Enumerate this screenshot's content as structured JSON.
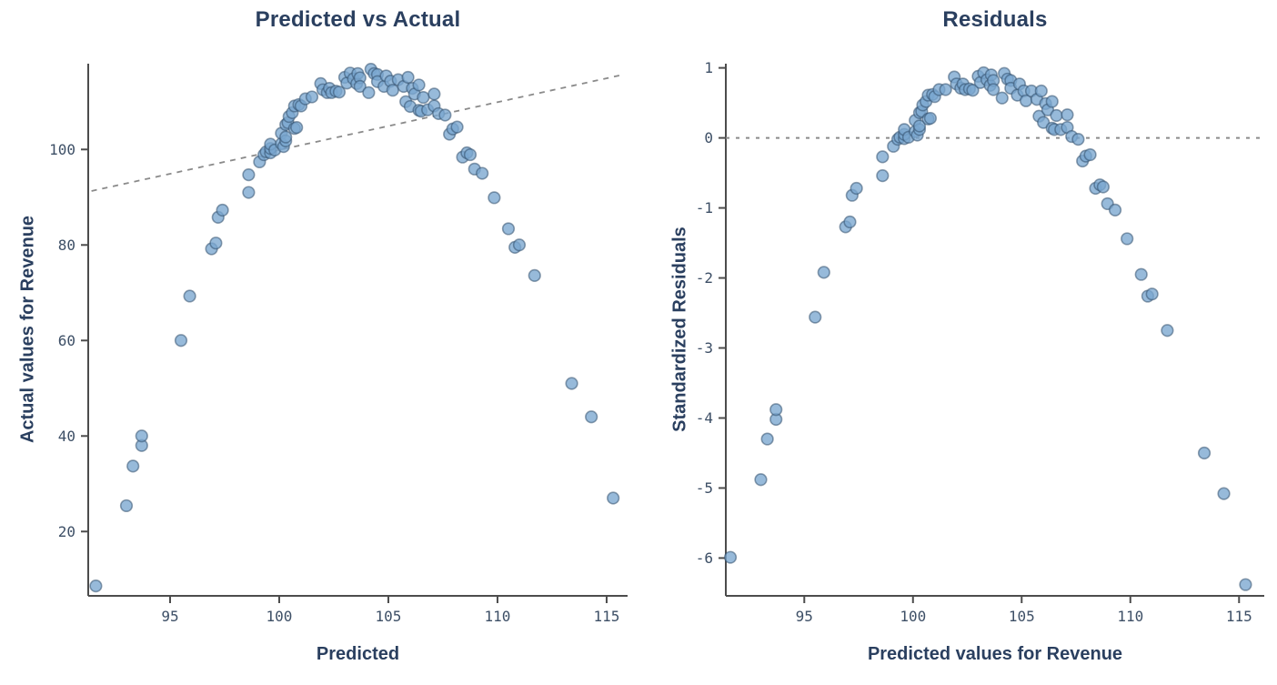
{
  "style": {
    "marker_fill": "#7aa6d0",
    "marker_stroke": "#33506e",
    "ref_line_color": "#8a8a8a",
    "axis_color": "#4c4c4c",
    "title_color": "#2a3f5f",
    "tick_label_color": "#3d4f66",
    "background": "#ffffff"
  },
  "chart_data": [
    {
      "type": "scatter",
      "title": "Predicted vs Actual",
      "xlabel": "Predicted",
      "ylabel": "Actual values for Revenue",
      "x_ticks": [
        95,
        100,
        105,
        110,
        115
      ],
      "y_ticks": [
        20,
        40,
        60,
        80,
        100
      ],
      "xlim": [
        91.25,
        115.96
      ],
      "ylim": [
        6.53,
        117.96
      ],
      "grid": false,
      "legend": "none",
      "ref_line": {
        "type": "diagonal",
        "x1": 91.4,
        "y1": 91.3,
        "x2": 115.62,
        "y2": 115.52,
        "dash": "dashed"
      },
      "points": [
        [
          91.6,
          8.6
        ],
        [
          93.0,
          25.4
        ],
        [
          93.3,
          33.7
        ],
        [
          93.7,
          38.0
        ],
        [
          93.7,
          40.0
        ],
        [
          95.5,
          60.0
        ],
        [
          95.9,
          69.3
        ],
        [
          96.9,
          79.2
        ],
        [
          97.1,
          80.4
        ],
        [
          97.2,
          85.8
        ],
        [
          97.4,
          87.3
        ],
        [
          98.6,
          91.0
        ],
        [
          98.6,
          94.7
        ],
        [
          99.1,
          97.4
        ],
        [
          99.3,
          98.9
        ],
        [
          99.4,
          99.5
        ],
        [
          99.6,
          99.3
        ],
        [
          99.6,
          100.2
        ],
        [
          99.6,
          101.1
        ],
        [
          99.8,
          99.9
        ],
        [
          100.1,
          101.2
        ],
        [
          100.1,
          103.4
        ],
        [
          100.2,
          100.6
        ],
        [
          100.3,
          101.8
        ],
        [
          100.3,
          102.6
        ],
        [
          100.3,
          105.2
        ],
        [
          100.4,
          105.6
        ],
        [
          100.45,
          106.9
        ],
        [
          100.6,
          107.7
        ],
        [
          100.7,
          104.4
        ],
        [
          100.8,
          104.6
        ],
        [
          100.7,
          109.1
        ],
        [
          100.9,
          109.4
        ],
        [
          101.0,
          109.1
        ],
        [
          101.2,
          110.6
        ],
        [
          101.5,
          111.0
        ],
        [
          101.9,
          113.8
        ],
        [
          102.0,
          112.5
        ],
        [
          102.2,
          111.9
        ],
        [
          102.3,
          112.8
        ],
        [
          102.4,
          111.9
        ],
        [
          102.6,
          112.2
        ],
        [
          102.75,
          112.0
        ],
        [
          103.0,
          115.1
        ],
        [
          103.1,
          113.9
        ],
        [
          103.25,
          116.0
        ],
        [
          103.4,
          114.8
        ],
        [
          103.55,
          113.8
        ],
        [
          103.6,
          115.9
        ],
        [
          103.7,
          115.0
        ],
        [
          103.7,
          113.2
        ],
        [
          104.1,
          111.9
        ],
        [
          104.2,
          116.8
        ],
        [
          104.35,
          115.9
        ],
        [
          104.5,
          115.7
        ],
        [
          104.5,
          114.2
        ],
        [
          104.8,
          113.2
        ],
        [
          104.9,
          115.4
        ],
        [
          105.1,
          114.3
        ],
        [
          105.2,
          112.4
        ],
        [
          105.45,
          114.6
        ],
        [
          105.7,
          113.2
        ],
        [
          105.8,
          110.0
        ],
        [
          105.9,
          115.1
        ],
        [
          106.0,
          109.0
        ],
        [
          106.1,
          112.8
        ],
        [
          106.2,
          111.6
        ],
        [
          106.4,
          113.5
        ],
        [
          106.4,
          108.2
        ],
        [
          106.5,
          108.0
        ],
        [
          106.6,
          110.9
        ],
        [
          106.8,
          108.3
        ],
        [
          107.1,
          111.6
        ],
        [
          107.1,
          109.1
        ],
        [
          107.3,
          107.5
        ],
        [
          107.6,
          107.2
        ],
        [
          107.8,
          103.2
        ],
        [
          107.95,
          104.3
        ],
        [
          108.15,
          104.7
        ],
        [
          108.4,
          98.4
        ],
        [
          108.6,
          99.3
        ],
        [
          108.75,
          98.9
        ],
        [
          108.95,
          95.9
        ],
        [
          109.3,
          95.0
        ],
        [
          109.85,
          89.9
        ],
        [
          110.5,
          83.4
        ],
        [
          110.8,
          79.5
        ],
        [
          111.0,
          80.0
        ],
        [
          111.7,
          73.6
        ],
        [
          113.4,
          51.0
        ],
        [
          114.3,
          44.0
        ],
        [
          115.3,
          27.0
        ]
      ]
    },
    {
      "type": "scatter",
      "title": "Residuals",
      "xlabel": "Predicted values for Revenue",
      "ylabel": "Standardized Residuals",
      "x_ticks": [
        95,
        100,
        105,
        110,
        115
      ],
      "y_ticks": [
        1,
        0,
        -1,
        -2,
        -3,
        -4,
        -5,
        -6
      ],
      "xlim": [
        91.39,
        116.16
      ],
      "ylim": [
        -6.54,
        1.06
      ],
      "grid": false,
      "legend": "none",
      "ref_line": {
        "type": "horizontal",
        "y": 0,
        "dash": "dashed"
      },
      "points": [
        [
          91.6,
          -5.99
        ],
        [
          93.0,
          -4.88
        ],
        [
          93.3,
          -4.3
        ],
        [
          93.7,
          -4.02
        ],
        [
          93.7,
          -3.88
        ],
        [
          95.5,
          -2.56
        ],
        [
          95.9,
          -1.92
        ],
        [
          96.9,
          -1.27
        ],
        [
          97.1,
          -1.2
        ],
        [
          97.2,
          -0.82
        ],
        [
          97.4,
          -0.72
        ],
        [
          98.6,
          -0.54
        ],
        [
          98.6,
          -0.27
        ],
        [
          99.1,
          -0.12
        ],
        [
          99.3,
          -0.02
        ],
        [
          99.4,
          0.01
        ],
        [
          99.6,
          -0.01
        ],
        [
          99.6,
          0.05
        ],
        [
          99.6,
          0.12
        ],
        [
          99.8,
          0.01
        ],
        [
          100.1,
          0.09
        ],
        [
          100.1,
          0.25
        ],
        [
          100.2,
          0.04
        ],
        [
          100.3,
          0.12
        ],
        [
          100.3,
          0.17
        ],
        [
          100.3,
          0.36
        ],
        [
          100.4,
          0.38
        ],
        [
          100.45,
          0.47
        ],
        [
          100.6,
          0.52
        ],
        [
          100.7,
          0.27
        ],
        [
          100.8,
          0.28
        ],
        [
          100.7,
          0.61
        ],
        [
          100.9,
          0.62
        ],
        [
          101.0,
          0.59
        ],
        [
          101.2,
          0.69
        ],
        [
          101.5,
          0.69
        ],
        [
          101.9,
          0.87
        ],
        [
          102.0,
          0.77
        ],
        [
          102.2,
          0.71
        ],
        [
          102.3,
          0.77
        ],
        [
          102.4,
          0.69
        ],
        [
          102.6,
          0.7
        ],
        [
          102.75,
          0.68
        ],
        [
          103.0,
          0.88
        ],
        [
          103.1,
          0.79
        ],
        [
          103.25,
          0.93
        ],
        [
          103.4,
          0.83
        ],
        [
          103.55,
          0.75
        ],
        [
          103.6,
          0.9
        ],
        [
          103.7,
          0.82
        ],
        [
          103.7,
          0.69
        ],
        [
          104.1,
          0.57
        ],
        [
          104.2,
          0.92
        ],
        [
          104.35,
          0.84
        ],
        [
          104.5,
          0.82
        ],
        [
          104.5,
          0.71
        ],
        [
          104.8,
          0.61
        ],
        [
          104.9,
          0.77
        ],
        [
          105.1,
          0.67
        ],
        [
          105.2,
          0.53
        ],
        [
          105.45,
          0.67
        ],
        [
          105.7,
          0.55
        ],
        [
          105.8,
          0.31
        ],
        [
          105.9,
          0.67
        ],
        [
          106.0,
          0.22
        ],
        [
          106.1,
          0.49
        ],
        [
          106.2,
          0.4
        ],
        [
          106.4,
          0.52
        ],
        [
          106.4,
          0.14
        ],
        [
          106.5,
          0.12
        ],
        [
          106.6,
          0.32
        ],
        [
          106.8,
          0.12
        ],
        [
          107.1,
          0.33
        ],
        [
          107.1,
          0.15
        ],
        [
          107.3,
          0.02
        ],
        [
          107.6,
          -0.02
        ],
        [
          107.8,
          -0.33
        ],
        [
          107.95,
          -0.26
        ],
        [
          108.15,
          -0.24
        ],
        [
          108.4,
          -0.72
        ],
        [
          108.6,
          -0.67
        ],
        [
          108.75,
          -0.7
        ],
        [
          108.95,
          -0.94
        ],
        [
          109.3,
          -1.03
        ],
        [
          109.85,
          -1.44
        ],
        [
          110.5,
          -1.95
        ],
        [
          110.8,
          -2.26
        ],
        [
          111.0,
          -2.23
        ],
        [
          111.7,
          -2.75
        ],
        [
          113.4,
          -4.5
        ],
        [
          114.3,
          -5.08
        ],
        [
          115.3,
          -6.38
        ]
      ]
    }
  ]
}
